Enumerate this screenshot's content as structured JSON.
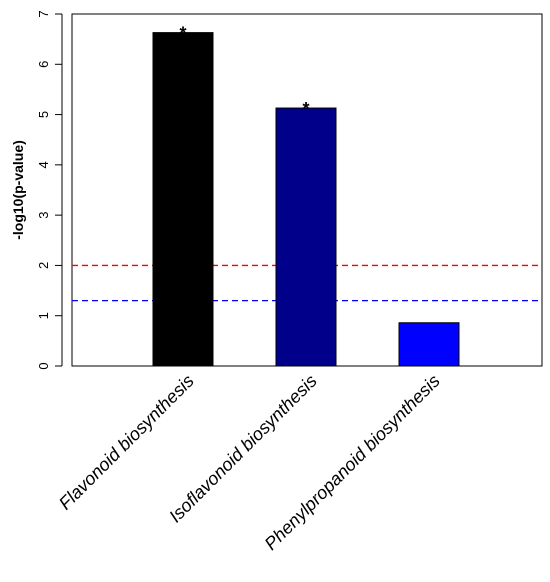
{
  "chart_data": {
    "type": "bar",
    "title": "",
    "xlabel": "",
    "ylabel": "-log10(p-value)",
    "ylim": [
      0,
      7
    ],
    "yticks": [
      0,
      1,
      2,
      3,
      4,
      5,
      6,
      7
    ],
    "categories": [
      "Flavonoid biosynthesis",
      "Isoflavonoid biosynthesis",
      "Phenylpropanoid biosynthesis"
    ],
    "values": [
      6.63,
      5.13,
      0.86
    ],
    "bar_colors": [
      "#000000",
      "#00008B",
      "#0000FF"
    ],
    "annotations": [
      "*",
      "*",
      ""
    ],
    "reference_lines": [
      {
        "value": 2.0,
        "color": "#ff0000",
        "style": "dashed"
      },
      {
        "value": 1.3,
        "color": "#0000ff",
        "style": "dashed"
      }
    ],
    "grid": false,
    "legend": "none"
  }
}
